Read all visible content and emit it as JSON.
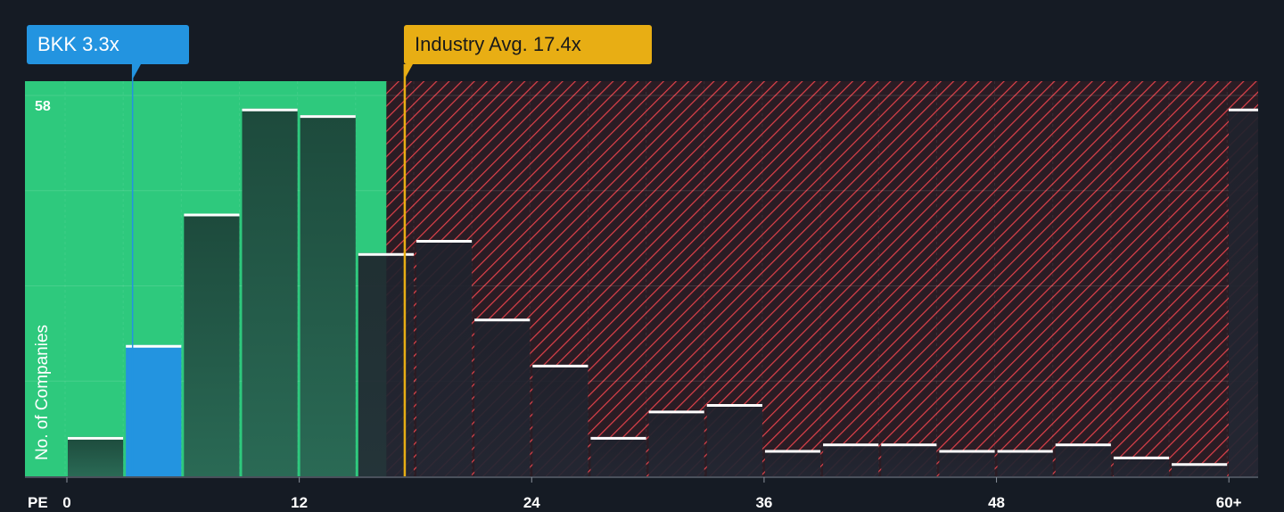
{
  "chart_data": {
    "type": "bar",
    "xlabel": "PE",
    "ylabel": "No. of Companies",
    "y_max_label": "58",
    "ylim": [
      0,
      58
    ],
    "xlim": [
      0,
      61.2
    ],
    "x_ticks": [
      {
        "value": 0,
        "label": "0"
      },
      {
        "value": 12,
        "label": "12"
      },
      {
        "value": 24,
        "label": "24"
      },
      {
        "value": 36,
        "label": "36"
      },
      {
        "value": 48,
        "label": "48"
      },
      {
        "value": 60,
        "label": "60+"
      }
    ],
    "bin_width": 3,
    "bins": [
      {
        "start": 0,
        "value": 6
      },
      {
        "start": 3,
        "value": 20
      },
      {
        "start": 6,
        "value": 40
      },
      {
        "start": 9,
        "value": 56
      },
      {
        "start": 12,
        "value": 55
      },
      {
        "start": 15,
        "value": 34
      },
      {
        "start": 18,
        "value": 36
      },
      {
        "start": 21,
        "value": 24
      },
      {
        "start": 24,
        "value": 17
      },
      {
        "start": 27,
        "value": 6
      },
      {
        "start": 30,
        "value": 10
      },
      {
        "start": 33,
        "value": 11
      },
      {
        "start": 36,
        "value": 4
      },
      {
        "start": 39,
        "value": 5
      },
      {
        "start": 42,
        "value": 5
      },
      {
        "start": 45,
        "value": 4
      },
      {
        "start": 48,
        "value": 4
      },
      {
        "start": 51,
        "value": 5
      },
      {
        "start": 54,
        "value": 3
      },
      {
        "start": 57,
        "value": 2
      },
      {
        "start": 60,
        "value": 56
      }
    ],
    "stock": {
      "label": "BKK 3.3x",
      "value": 3.3
    },
    "industry_avg": {
      "label": "Industry Avg. 17.4x",
      "value": 17.4
    },
    "fair_region_end": 16.5,
    "colors": {
      "background": "#151b24",
      "fair_region": "#2ec97d",
      "bar_fair": "#1e4d3e",
      "bar_stock": "#2394e0",
      "bar_expensive": "#222632",
      "hatch": "#e0414a",
      "industry_line": "#e8ae14",
      "stock_line": "#2394e0"
    }
  }
}
